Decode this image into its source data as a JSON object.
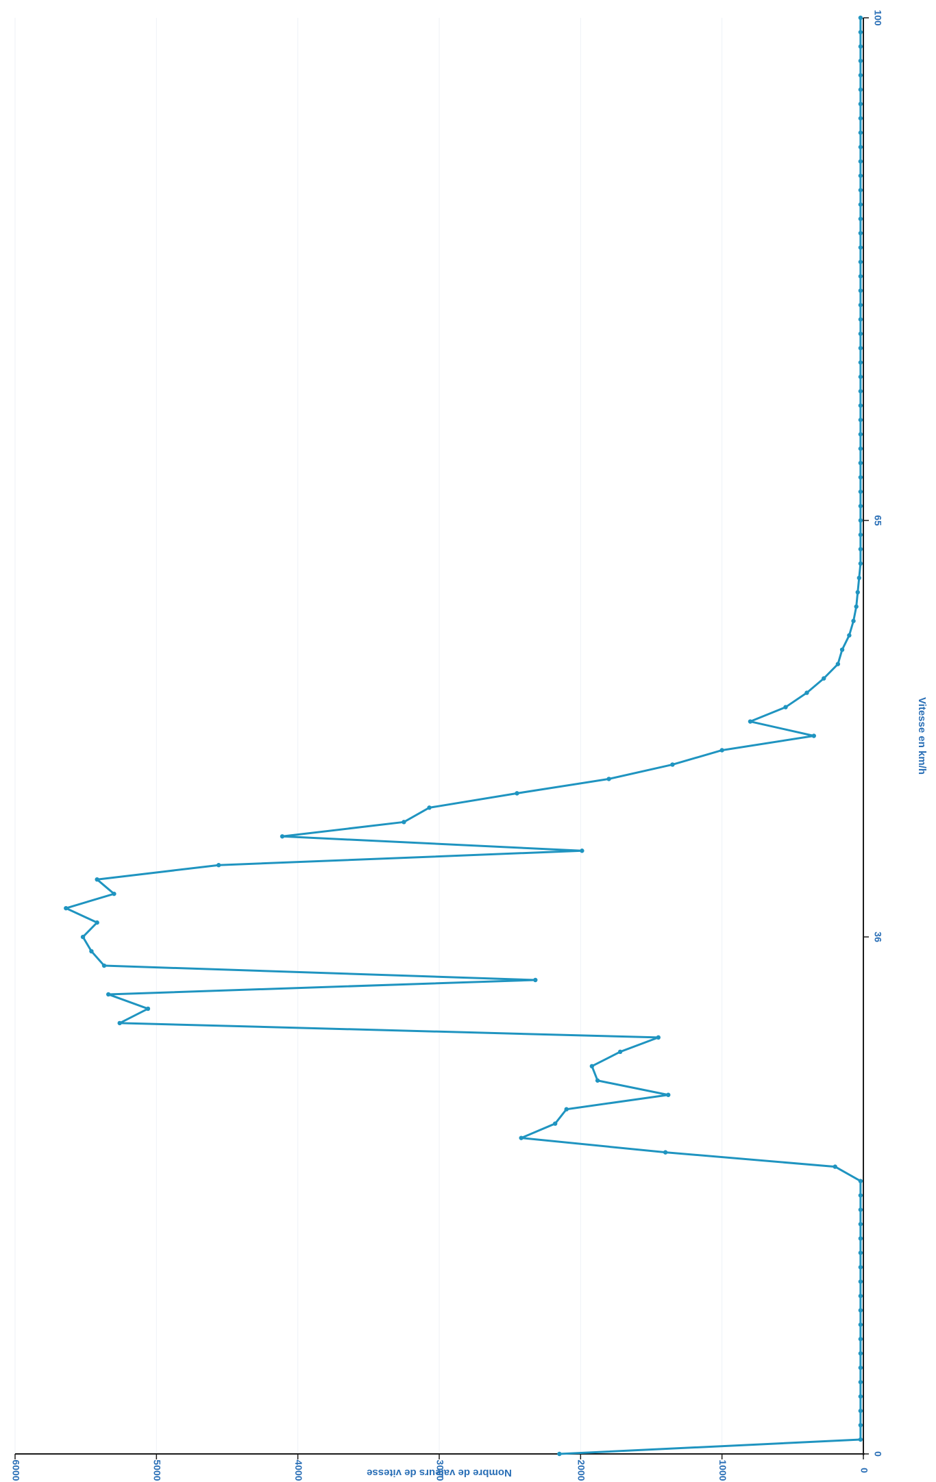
{
  "chart_data": {
    "type": "line",
    "orientation": "rotated-90-clockwise",
    "title": "",
    "xlabel": "Vitesse en km/h",
    "ylabel": "Nombre de valeurs de vitesse",
    "xlim": [
      0,
      100
    ],
    "ylim": [
      0,
      6000
    ],
    "x_ticks": [
      "0",
      "36",
      "65",
      "100"
    ],
    "y_ticks": [
      "0",
      "1000",
      "2000",
      "3000",
      "4000",
      "5000",
      "6000"
    ],
    "grid": true,
    "line_color": "#1f94c0",
    "series": [
      {
        "x": [
          0,
          1,
          2,
          3,
          4,
          5,
          6,
          7,
          8,
          9,
          10,
          11,
          12,
          13,
          14,
          15,
          16,
          17,
          18,
          19,
          20,
          21,
          22,
          23,
          24,
          25,
          26,
          27,
          28,
          29,
          30,
          31,
          32,
          33,
          34,
          35,
          36,
          37,
          38,
          39,
          40,
          41,
          42,
          43,
          44,
          45,
          46,
          47,
          48,
          49,
          50,
          51,
          52,
          53,
          54,
          55,
          56,
          57,
          58,
          59,
          60,
          61,
          62,
          63,
          64,
          65,
          66,
          67,
          68,
          69,
          70,
          71,
          72,
          73,
          74,
          75,
          76,
          77,
          78,
          79,
          80,
          81,
          82,
          83,
          84,
          85,
          86,
          87,
          88,
          89,
          90,
          91,
          92,
          93,
          94,
          95,
          96,
          97,
          98,
          99,
          100
        ],
        "values": [
          2150,
          20,
          20,
          20,
          20,
          20,
          20,
          20,
          20,
          20,
          20,
          20,
          20,
          20,
          20,
          20,
          20,
          20,
          20,
          20,
          200,
          1400,
          2420,
          2180,
          2100,
          1380,
          1880,
          1920,
          1720,
          1450,
          5260,
          5060,
          5340,
          2320,
          5370,
          5460,
          5520,
          5420,
          5640,
          5300,
          5420,
          4560,
          1990,
          4110,
          3250,
          3070,
          2450,
          1800,
          1350,
          1000,
          350,
          800,
          550,
          400,
          280,
          180,
          150,
          100,
          70,
          50,
          40,
          30,
          20,
          20,
          20,
          20,
          20,
          20,
          20,
          20,
          20,
          20,
          20,
          20,
          20,
          20,
          20,
          20,
          20,
          20,
          20,
          20,
          20,
          20,
          20,
          20,
          20,
          20,
          20,
          20,
          20,
          20,
          20,
          20,
          20,
          20,
          20,
          20,
          20,
          20,
          20
        ]
      }
    ]
  }
}
